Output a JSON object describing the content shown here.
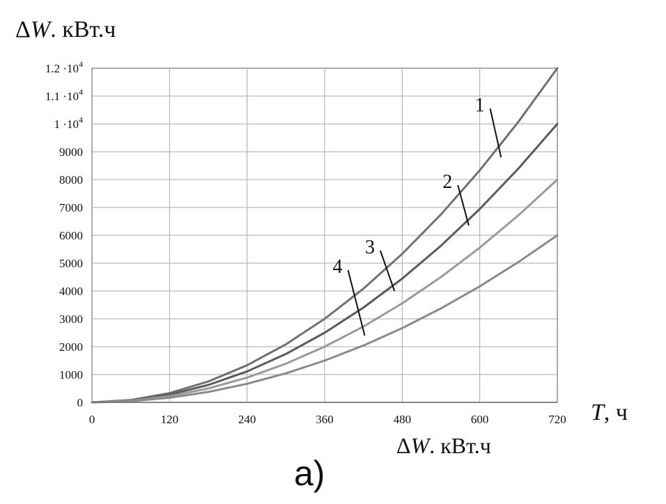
{
  "chart_data": {
    "type": "line",
    "x_label_symbol": "T",
    "x_label_unit": "ч",
    "y_label_symbol": "W",
    "y_label_unit": "кВт.ч",
    "bottom_label_symbol": "W",
    "bottom_label_unit": "кВт.ч",
    "panel_label": "а)",
    "x_ticks": [
      "0",
      "120",
      "240",
      "360",
      "480",
      "600",
      "720"
    ],
    "y_ticks": [
      "0",
      "1000",
      "2000",
      "3000",
      "4000",
      "5000",
      "6000",
      "7000",
      "8000",
      "9000",
      "1·10^4",
      "1.1·10^4",
      "1.2·10^4"
    ],
    "x_range": [
      0,
      720
    ],
    "y_range": [
      0,
      12000
    ],
    "grid": true,
    "series": [
      {
        "name": "1",
        "color": "#707070",
        "x": [
          0,
          60,
          120,
          180,
          240,
          300,
          360,
          420,
          480,
          540,
          600,
          660,
          720
        ],
        "y": [
          0,
          83,
          333,
          750,
          1333,
          2083,
          3000,
          4083,
          5333,
          6750,
          8333,
          10083,
          12000
        ]
      },
      {
        "name": "2",
        "color": "#5a5a5a",
        "x": [
          0,
          60,
          120,
          180,
          240,
          300,
          360,
          420,
          480,
          540,
          600,
          660,
          720
        ],
        "y": [
          0,
          69,
          278,
          625,
          1111,
          1736,
          2500,
          3403,
          4444,
          5625,
          6944,
          8403,
          10000
        ]
      },
      {
        "name": "3",
        "color": "#9a9a9a",
        "x": [
          0,
          60,
          120,
          180,
          240,
          300,
          360,
          420,
          480,
          540,
          600,
          660,
          720
        ],
        "y": [
          0,
          56,
          222,
          500,
          889,
          1389,
          2000,
          2722,
          3556,
          4500,
          5556,
          6722,
          8000
        ]
      },
      {
        "name": "4",
        "color": "#8a8a8a",
        "x": [
          0,
          60,
          120,
          180,
          240,
          300,
          360,
          420,
          480,
          540,
          600,
          660,
          720
        ],
        "y": [
          0,
          42,
          167,
          375,
          667,
          1042,
          1500,
          2042,
          2667,
          3375,
          4167,
          5042,
          6000
        ]
      }
    ],
    "annotations": [
      {
        "text": "1",
        "x": 600,
        "y": 10200,
        "series": "1",
        "pointer_to_x": 633,
        "pointer_to_y": 8800
      },
      {
        "text": "2",
        "x": 550,
        "y": 7450,
        "series": "2",
        "pointer_to_x": 583,
        "pointer_to_y": 6350
      },
      {
        "text": "3",
        "x": 430,
        "y": 5100,
        "series": "3",
        "pointer_to_x": 468,
        "pointer_to_y": 4000
      },
      {
        "text": "4",
        "x": 380,
        "y": 4400,
        "series": "4",
        "pointer_to_x": 422,
        "pointer_to_y": 2400
      }
    ]
  }
}
